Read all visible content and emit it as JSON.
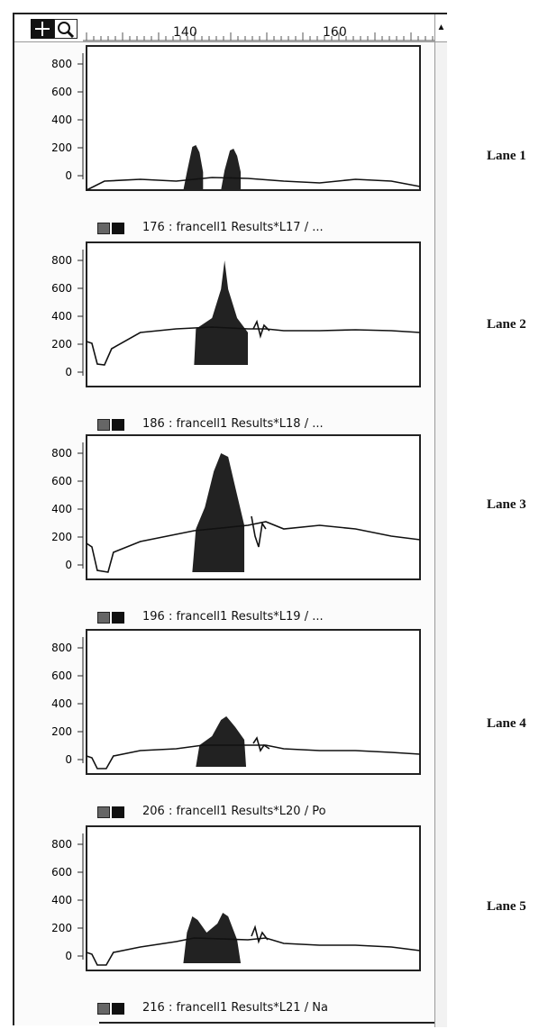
{
  "ruler": {
    "ticks": [
      "140",
      "160"
    ]
  },
  "y_axis_ticks": [
    "800",
    "600",
    "400",
    "200",
    "0"
  ],
  "icons": {
    "cross_tool": "crosshair-icon",
    "zoom_tool": "magnifier-icon",
    "scroll_up": "arrow-up-icon"
  },
  "panels": [
    {
      "caption": "176 : francell1 Results*L17 / ...",
      "lane": "Lane 1"
    },
    {
      "caption": "186 : francell1 Results*L18 / ...",
      "lane": "Lane 2"
    },
    {
      "caption": "196 : francell1 Results*L19 / ...",
      "lane": "Lane 3"
    },
    {
      "caption": "206 : francell1 Results*L20 / Po",
      "lane": "Lane 4"
    },
    {
      "caption": "216 : francell1 Results*L21 / Na",
      "lane": "Lane 5"
    }
  ],
  "colors": {
    "trace": "#111111",
    "fill": "#222222",
    "frame": "#222222"
  }
}
